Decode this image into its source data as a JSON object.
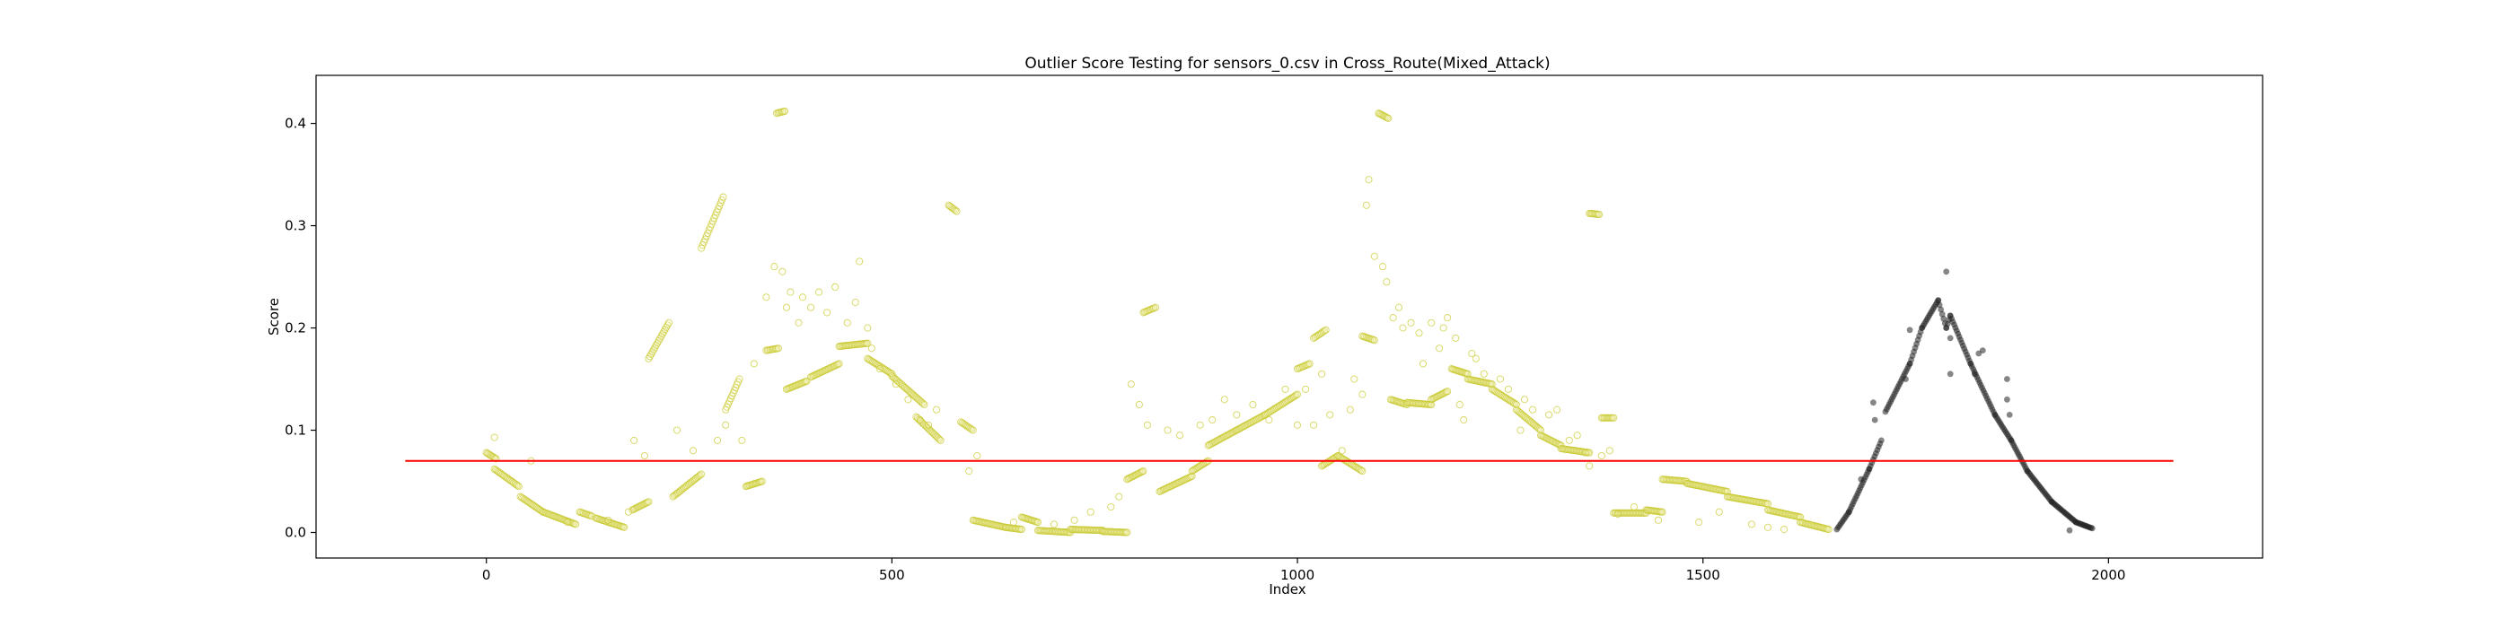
{
  "chart_data": {
    "type": "scatter",
    "title": "Outlier Score Testing for sensors_0.csv in Cross_Route(Mixed_Attack)",
    "xlabel": "Index",
    "ylabel": "Score",
    "xlim": [
      -210,
      2190
    ],
    "ylim": [
      -0.025,
      0.447
    ],
    "xticks": [
      0,
      500,
      1000,
      1500,
      2000
    ],
    "yticks": [
      0.0,
      0.1,
      0.2,
      0.3,
      0.4
    ],
    "xtick_labels": [
      "0",
      "500",
      "1000",
      "1500",
      "2000"
    ],
    "ytick_labels": [
      "0.0",
      "0.1",
      "0.2",
      "0.3",
      "0.4"
    ],
    "grid": false,
    "threshold": {
      "value": 0.07,
      "x_range": [
        -100,
        2080
      ],
      "color": "#ff0000"
    },
    "series": [
      {
        "style": "yellow-hollow",
        "color": "#c8c832",
        "segments": [
          [
            0,
            0.078,
            12,
            0.072
          ],
          [
            10,
            0.062,
            40,
            0.045
          ],
          [
            42,
            0.035,
            70,
            0.02
          ],
          [
            70,
            0.02,
            110,
            0.008
          ],
          [
            115,
            0.02,
            130,
            0.016
          ],
          [
            135,
            0.014,
            170,
            0.005
          ],
          [
            180,
            0.022,
            200,
            0.03
          ],
          [
            200,
            0.17,
            225,
            0.205
          ],
          [
            230,
            0.035,
            265,
            0.057
          ],
          [
            265,
            0.278,
            292,
            0.328
          ],
          [
            295,
            0.12,
            312,
            0.15
          ],
          [
            320,
            0.045,
            340,
            0.05
          ],
          [
            345,
            0.178,
            360,
            0.18
          ],
          [
            358,
            0.41,
            368,
            0.412
          ],
          [
            370,
            0.14,
            395,
            0.148
          ],
          [
            400,
            0.152,
            435,
            0.165
          ],
          [
            435,
            0.182,
            470,
            0.185
          ],
          [
            470,
            0.17,
            500,
            0.155
          ],
          [
            500,
            0.153,
            540,
            0.125
          ],
          [
            530,
            0.113,
            560,
            0.09
          ],
          [
            570,
            0.32,
            580,
            0.314
          ],
          [
            585,
            0.108,
            600,
            0.1
          ],
          [
            600,
            0.012,
            640,
            0.005
          ],
          [
            640,
            0.005,
            660,
            0.003
          ],
          [
            660,
            0.015,
            680,
            0.01
          ],
          [
            680,
            0.002,
            720,
            0.0
          ],
          [
            720,
            0.003,
            760,
            0.002
          ],
          [
            760,
            0.001,
            790,
            0.0
          ],
          [
            790,
            0.052,
            810,
            0.06
          ],
          [
            810,
            0.215,
            825,
            0.22
          ],
          [
            830,
            0.04,
            870,
            0.055
          ],
          [
            870,
            0.06,
            890,
            0.07
          ],
          [
            890,
            0.085,
            925,
            0.1
          ],
          [
            925,
            0.1,
            960,
            0.115
          ],
          [
            960,
            0.115,
            1000,
            0.135
          ],
          [
            1000,
            0.16,
            1015,
            0.165
          ],
          [
            1020,
            0.19,
            1035,
            0.198
          ],
          [
            1030,
            0.065,
            1050,
            0.075
          ],
          [
            1050,
            0.075,
            1080,
            0.06
          ],
          [
            1080,
            0.192,
            1095,
            0.188
          ],
          [
            1100,
            0.41,
            1112,
            0.405
          ],
          [
            1115,
            0.13,
            1135,
            0.125
          ],
          [
            1135,
            0.127,
            1165,
            0.125
          ],
          [
            1165,
            0.13,
            1185,
            0.138
          ],
          [
            1190,
            0.16,
            1210,
            0.155
          ],
          [
            1210,
            0.15,
            1240,
            0.145
          ],
          [
            1240,
            0.14,
            1270,
            0.125
          ],
          [
            1270,
            0.12,
            1300,
            0.1
          ],
          [
            1300,
            0.095,
            1325,
            0.085
          ],
          [
            1325,
            0.082,
            1360,
            0.078
          ],
          [
            1360,
            0.312,
            1372,
            0.311
          ],
          [
            1375,
            0.112,
            1390,
            0.112
          ],
          [
            1390,
            0.019,
            1430,
            0.019
          ],
          [
            1430,
            0.022,
            1450,
            0.02
          ],
          [
            1450,
            0.052,
            1480,
            0.05
          ],
          [
            1480,
            0.048,
            1530,
            0.04
          ],
          [
            1530,
            0.035,
            1580,
            0.028
          ],
          [
            1580,
            0.022,
            1620,
            0.015
          ],
          [
            1620,
            0.01,
            1655,
            0.003
          ]
        ],
        "scatter": [
          [
            10,
            0.093
          ],
          [
            55,
            0.07
          ],
          [
            100,
            0.01
          ],
          [
            150,
            0.012
          ],
          [
            175,
            0.02
          ],
          [
            182,
            0.09
          ],
          [
            195,
            0.075
          ],
          [
            235,
            0.1
          ],
          [
            255,
            0.08
          ],
          [
            285,
            0.09
          ],
          [
            295,
            0.105
          ],
          [
            315,
            0.09
          ],
          [
            330,
            0.165
          ],
          [
            345,
            0.23
          ],
          [
            355,
            0.26
          ],
          [
            365,
            0.255
          ],
          [
            370,
            0.22
          ],
          [
            375,
            0.235
          ],
          [
            385,
            0.205
          ],
          [
            390,
            0.23
          ],
          [
            400,
            0.22
          ],
          [
            410,
            0.235
          ],
          [
            420,
            0.215
          ],
          [
            430,
            0.24
          ],
          [
            445,
            0.205
          ],
          [
            460,
            0.265
          ],
          [
            455,
            0.225
          ],
          [
            470,
            0.2
          ],
          [
            475,
            0.18
          ],
          [
            485,
            0.16
          ],
          [
            505,
            0.145
          ],
          [
            520,
            0.13
          ],
          [
            535,
            0.11
          ],
          [
            545,
            0.105
          ],
          [
            555,
            0.12
          ],
          [
            595,
            0.06
          ],
          [
            605,
            0.075
          ],
          [
            650,
            0.01
          ],
          [
            700,
            0.008
          ],
          [
            725,
            0.012
          ],
          [
            745,
            0.02
          ],
          [
            770,
            0.025
          ],
          [
            780,
            0.035
          ],
          [
            795,
            0.145
          ],
          [
            805,
            0.125
          ],
          [
            815,
            0.105
          ],
          [
            840,
            0.1
          ],
          [
            855,
            0.095
          ],
          [
            880,
            0.105
          ],
          [
            895,
            0.11
          ],
          [
            910,
            0.13
          ],
          [
            925,
            0.115
          ],
          [
            945,
            0.125
          ],
          [
            965,
            0.11
          ],
          [
            985,
            0.14
          ],
          [
            1000,
            0.105
          ],
          [
            1010,
            0.14
          ],
          [
            1020,
            0.105
          ],
          [
            1030,
            0.155
          ],
          [
            1040,
            0.115
          ],
          [
            1055,
            0.08
          ],
          [
            1065,
            0.12
          ],
          [
            1070,
            0.15
          ],
          [
            1080,
            0.135
          ],
          [
            1085,
            0.32
          ],
          [
            1088,
            0.345
          ],
          [
            1095,
            0.27
          ],
          [
            1105,
            0.26
          ],
          [
            1110,
            0.245
          ],
          [
            1118,
            0.21
          ],
          [
            1125,
            0.22
          ],
          [
            1130,
            0.2
          ],
          [
            1140,
            0.205
          ],
          [
            1150,
            0.195
          ],
          [
            1155,
            0.165
          ],
          [
            1165,
            0.205
          ],
          [
            1175,
            0.18
          ],
          [
            1180,
            0.2
          ],
          [
            1185,
            0.21
          ],
          [
            1195,
            0.19
          ],
          [
            1200,
            0.125
          ],
          [
            1205,
            0.11
          ],
          [
            1215,
            0.175
          ],
          [
            1220,
            0.17
          ],
          [
            1230,
            0.155
          ],
          [
            1250,
            0.15
          ],
          [
            1260,
            0.14
          ],
          [
            1275,
            0.1
          ],
          [
            1280,
            0.13
          ],
          [
            1290,
            0.12
          ],
          [
            1310,
            0.115
          ],
          [
            1320,
            0.12
          ],
          [
            1335,
            0.09
          ],
          [
            1345,
            0.095
          ],
          [
            1355,
            0.078
          ],
          [
            1360,
            0.065
          ],
          [
            1375,
            0.075
          ],
          [
            1385,
            0.08
          ],
          [
            1395,
            0.018
          ],
          [
            1415,
            0.025
          ],
          [
            1445,
            0.012
          ],
          [
            1495,
            0.01
          ],
          [
            1520,
            0.02
          ],
          [
            1560,
            0.008
          ],
          [
            1580,
            0.005
          ],
          [
            1600,
            0.003
          ]
        ]
      },
      {
        "style": "dark-filled",
        "color": "#222222",
        "segments": [
          [
            1665,
            0.003,
            1680,
            0.02
          ],
          [
            1680,
            0.02,
            1705,
            0.062
          ],
          [
            1705,
            0.062,
            1720,
            0.09
          ],
          [
            1725,
            0.118,
            1755,
            0.165
          ],
          [
            1755,
            0.165,
            1770,
            0.2
          ],
          [
            1770,
            0.2,
            1790,
            0.227
          ],
          [
            1790,
            0.227,
            1800,
            0.2
          ],
          [
            1800,
            0.2,
            1805,
            0.212
          ],
          [
            1805,
            0.212,
            1830,
            0.165
          ],
          [
            1830,
            0.165,
            1860,
            0.115
          ],
          [
            1860,
            0.115,
            1880,
            0.09
          ],
          [
            1880,
            0.09,
            1900,
            0.06
          ],
          [
            1900,
            0.06,
            1930,
            0.03
          ],
          [
            1930,
            0.03,
            1960,
            0.01
          ],
          [
            1960,
            0.01,
            1980,
            0.004
          ]
        ],
        "scatter": [
          [
            1695,
            0.052
          ],
          [
            1710,
            0.127
          ],
          [
            1712,
            0.11
          ],
          [
            1750,
            0.15
          ],
          [
            1755,
            0.198
          ],
          [
            1800,
            0.255
          ],
          [
            1805,
            0.19
          ],
          [
            1805,
            0.155
          ],
          [
            1840,
            0.175
          ],
          [
            1845,
            0.178
          ],
          [
            1835,
            0.155
          ],
          [
            1875,
            0.15
          ],
          [
            1875,
            0.13
          ],
          [
            1878,
            0.115
          ],
          [
            1952,
            0.002
          ]
        ]
      }
    ]
  }
}
